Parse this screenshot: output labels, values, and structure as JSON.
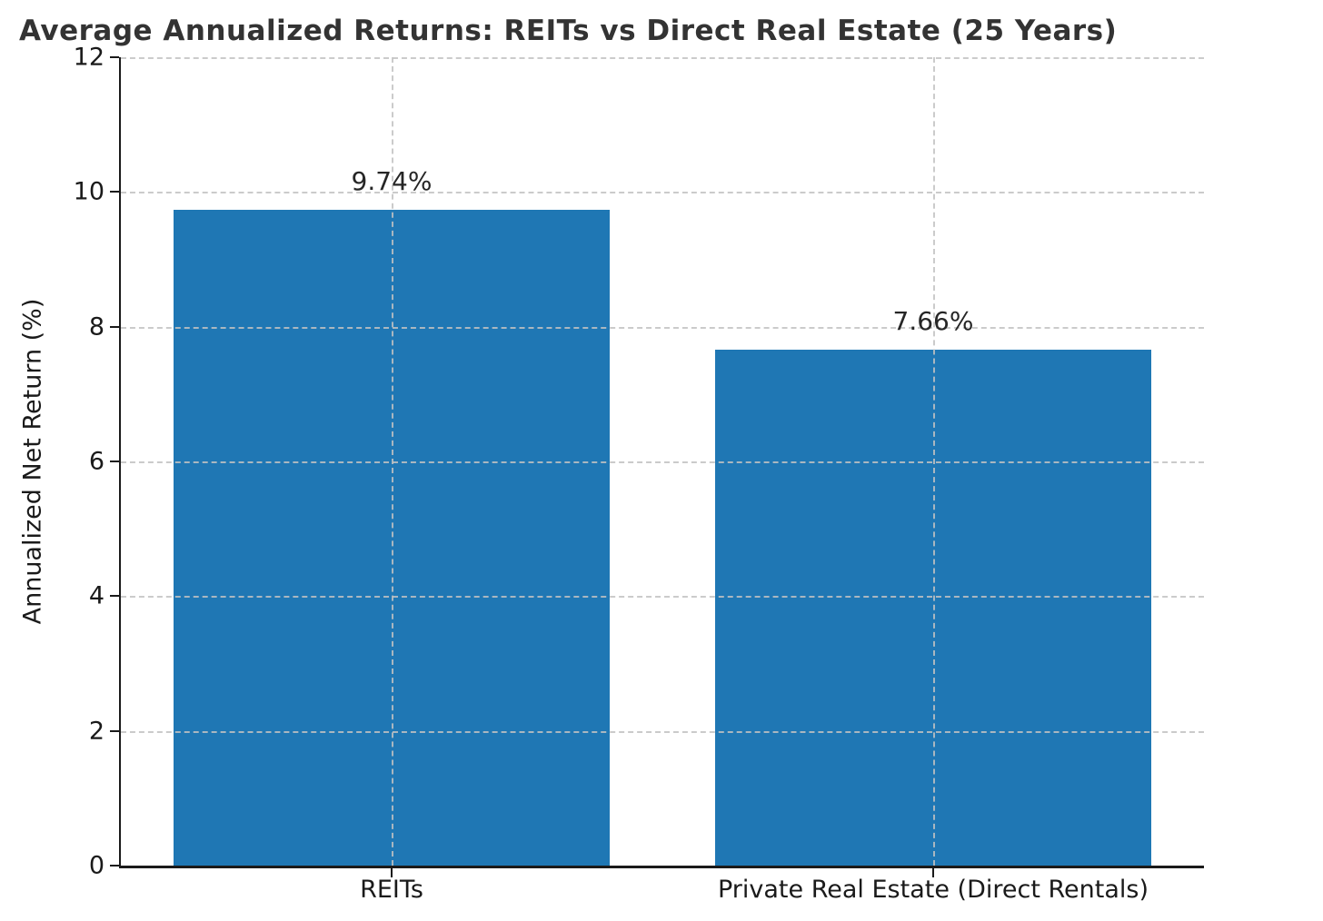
{
  "chart_data": {
    "type": "bar",
    "title": "Average Annualized Returns: REITs vs Direct Real Estate (25 Years)",
    "categories": [
      "REITs",
      "Private Real Estate (Direct Rentals)"
    ],
    "values": [
      9.74,
      7.66
    ],
    "value_labels": [
      "9.74%",
      "7.66%"
    ],
    "xlabel": "",
    "ylabel": "Annualized Net Return (%)",
    "ylim": [
      0,
      12
    ],
    "yticks": [
      0,
      2,
      4,
      6,
      8,
      10,
      12
    ],
    "bar_color": "#1f77b4",
    "grid": "dashed-both-axes-over-bars",
    "legend_position": "none"
  }
}
